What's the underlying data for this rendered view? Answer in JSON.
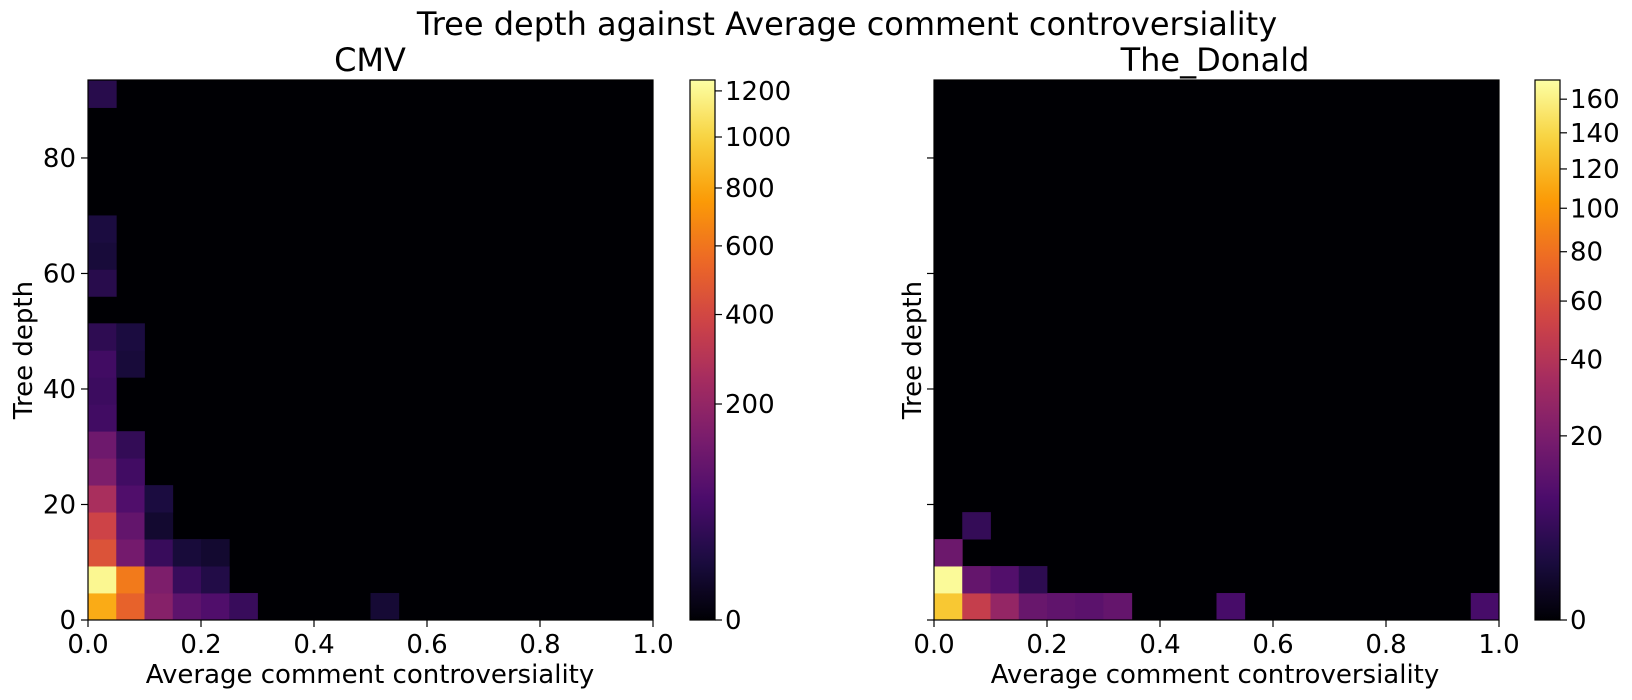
{
  "figure": {
    "suptitle": "Tree depth against Average comment controversiality"
  },
  "colormap": {
    "name": "inferno",
    "stops": [
      "#000004",
      "#1b0c41",
      "#4a0c6b",
      "#781c6d",
      "#a52c60",
      "#cf4446",
      "#ed6925",
      "#fb9b06",
      "#f7d13d",
      "#fcffa4"
    ]
  },
  "chart_data": [
    {
      "type": "heatmap",
      "title": "CMV",
      "xlabel": "Average comment controversiality",
      "ylabel": "Tree depth",
      "xlim": [
        0,
        1
      ],
      "ylim": [
        0,
        93.5
      ],
      "x_bin_width": 0.05,
      "y_bin_height": 4.67,
      "x_ticks": [
        0,
        0.2,
        0.4,
        0.6,
        0.8,
        1.0
      ],
      "x_tick_labels": [
        "0.0",
        "0.2",
        "0.4",
        "0.6",
        "0.8",
        "1.0"
      ],
      "y_ticks": [
        0,
        20,
        40,
        60,
        80
      ],
      "y_tick_labels": [
        "0",
        "20",
        "40",
        "60",
        "80"
      ],
      "show_y_tick_labels": true,
      "grid": false,
      "color_scale": "sqrt",
      "colorbar": {
        "vmin": 0,
        "vmax": 1250,
        "ticks": [
          0,
          200,
          400,
          600,
          800,
          1000,
          1200
        ],
        "tick_labels": [
          "0",
          "200",
          "400",
          "600",
          "800",
          "1000",
          "1200"
        ]
      },
      "cells": [
        {
          "x": 0,
          "y": 0,
          "count": 820
        },
        {
          "x": 1,
          "y": 0,
          "count": 520
        },
        {
          "x": 2,
          "y": 0,
          "count": 170
        },
        {
          "x": 3,
          "y": 0,
          "count": 90
        },
        {
          "x": 4,
          "y": 0,
          "count": 70
        },
        {
          "x": 5,
          "y": 0,
          "count": 40
        },
        {
          "x": 10,
          "y": 0,
          "count": 10
        },
        {
          "x": 0,
          "y": 1,
          "count": 1200
        },
        {
          "x": 1,
          "y": 1,
          "count": 620
        },
        {
          "x": 2,
          "y": 1,
          "count": 150
        },
        {
          "x": 3,
          "y": 1,
          "count": 40
        },
        {
          "x": 4,
          "y": 1,
          "count": 20
        },
        {
          "x": 0,
          "y": 2,
          "count": 450
        },
        {
          "x": 1,
          "y": 2,
          "count": 130
        },
        {
          "x": 2,
          "y": 2,
          "count": 40
        },
        {
          "x": 3,
          "y": 2,
          "count": 12
        },
        {
          "x": 4,
          "y": 2,
          "count": 8
        },
        {
          "x": 0,
          "y": 3,
          "count": 380
        },
        {
          "x": 1,
          "y": 3,
          "count": 100
        },
        {
          "x": 2,
          "y": 3,
          "count": 8
        },
        {
          "x": 0,
          "y": 4,
          "count": 260
        },
        {
          "x": 1,
          "y": 4,
          "count": 70
        },
        {
          "x": 2,
          "y": 4,
          "count": 15
        },
        {
          "x": 0,
          "y": 5,
          "count": 150
        },
        {
          "x": 1,
          "y": 5,
          "count": 50
        },
        {
          "x": 0,
          "y": 6,
          "count": 120
        },
        {
          "x": 1,
          "y": 6,
          "count": 35
        },
        {
          "x": 0,
          "y": 7,
          "count": 50
        },
        {
          "x": 0,
          "y": 8,
          "count": 45
        },
        {
          "x": 0,
          "y": 9,
          "count": 50
        },
        {
          "x": 1,
          "y": 9,
          "count": 12
        },
        {
          "x": 0,
          "y": 10,
          "count": 30
        },
        {
          "x": 1,
          "y": 10,
          "count": 15
        },
        {
          "x": 0,
          "y": 12,
          "count": 25
        },
        {
          "x": 0,
          "y": 13,
          "count": 12
        },
        {
          "x": 0,
          "y": 14,
          "count": 15
        },
        {
          "x": 0,
          "y": 19,
          "count": 25
        }
      ]
    },
    {
      "type": "heatmap",
      "title": "The_Donald",
      "xlabel": "Average comment controversiality",
      "ylabel": "Tree depth",
      "xlim": [
        0,
        1
      ],
      "ylim": [
        0,
        93.5
      ],
      "x_bin_width": 0.05,
      "y_bin_height": 4.67,
      "x_ticks": [
        0,
        0.2,
        0.4,
        0.6,
        0.8,
        1.0
      ],
      "x_tick_labels": [
        "0.0",
        "0.2",
        "0.4",
        "0.6",
        "0.8",
        "1.0"
      ],
      "y_ticks": [
        0,
        20,
        40,
        60,
        80
      ],
      "y_tick_labels": [
        "",
        "",
        "",
        "",
        ""
      ],
      "show_y_tick_labels": false,
      "grid": false,
      "color_scale": "sqrt",
      "colorbar": {
        "vmin": 0,
        "vmax": 172,
        "ticks": [
          0,
          20,
          40,
          60,
          80,
          100,
          120,
          140,
          160
        ],
        "tick_labels": [
          "0",
          "20",
          "40",
          "60",
          "80",
          "100",
          "120",
          "140",
          "160"
        ]
      },
      "cells": [
        {
          "x": 0,
          "y": 0,
          "count": 130
        },
        {
          "x": 1,
          "y": 0,
          "count": 48
        },
        {
          "x": 2,
          "y": 0,
          "count": 28
        },
        {
          "x": 3,
          "y": 0,
          "count": 15
        },
        {
          "x": 4,
          "y": 0,
          "count": 13
        },
        {
          "x": 5,
          "y": 0,
          "count": 12
        },
        {
          "x": 6,
          "y": 0,
          "count": 14
        },
        {
          "x": 10,
          "y": 0,
          "count": 8
        },
        {
          "x": 19,
          "y": 0,
          "count": 8
        },
        {
          "x": 0,
          "y": 1,
          "count": 168
        },
        {
          "x": 1,
          "y": 1,
          "count": 14
        },
        {
          "x": 2,
          "y": 1,
          "count": 10
        },
        {
          "x": 3,
          "y": 1,
          "count": 4
        },
        {
          "x": 0,
          "y": 2,
          "count": 16
        },
        {
          "x": 1,
          "y": 3,
          "count": 5
        }
      ]
    }
  ]
}
